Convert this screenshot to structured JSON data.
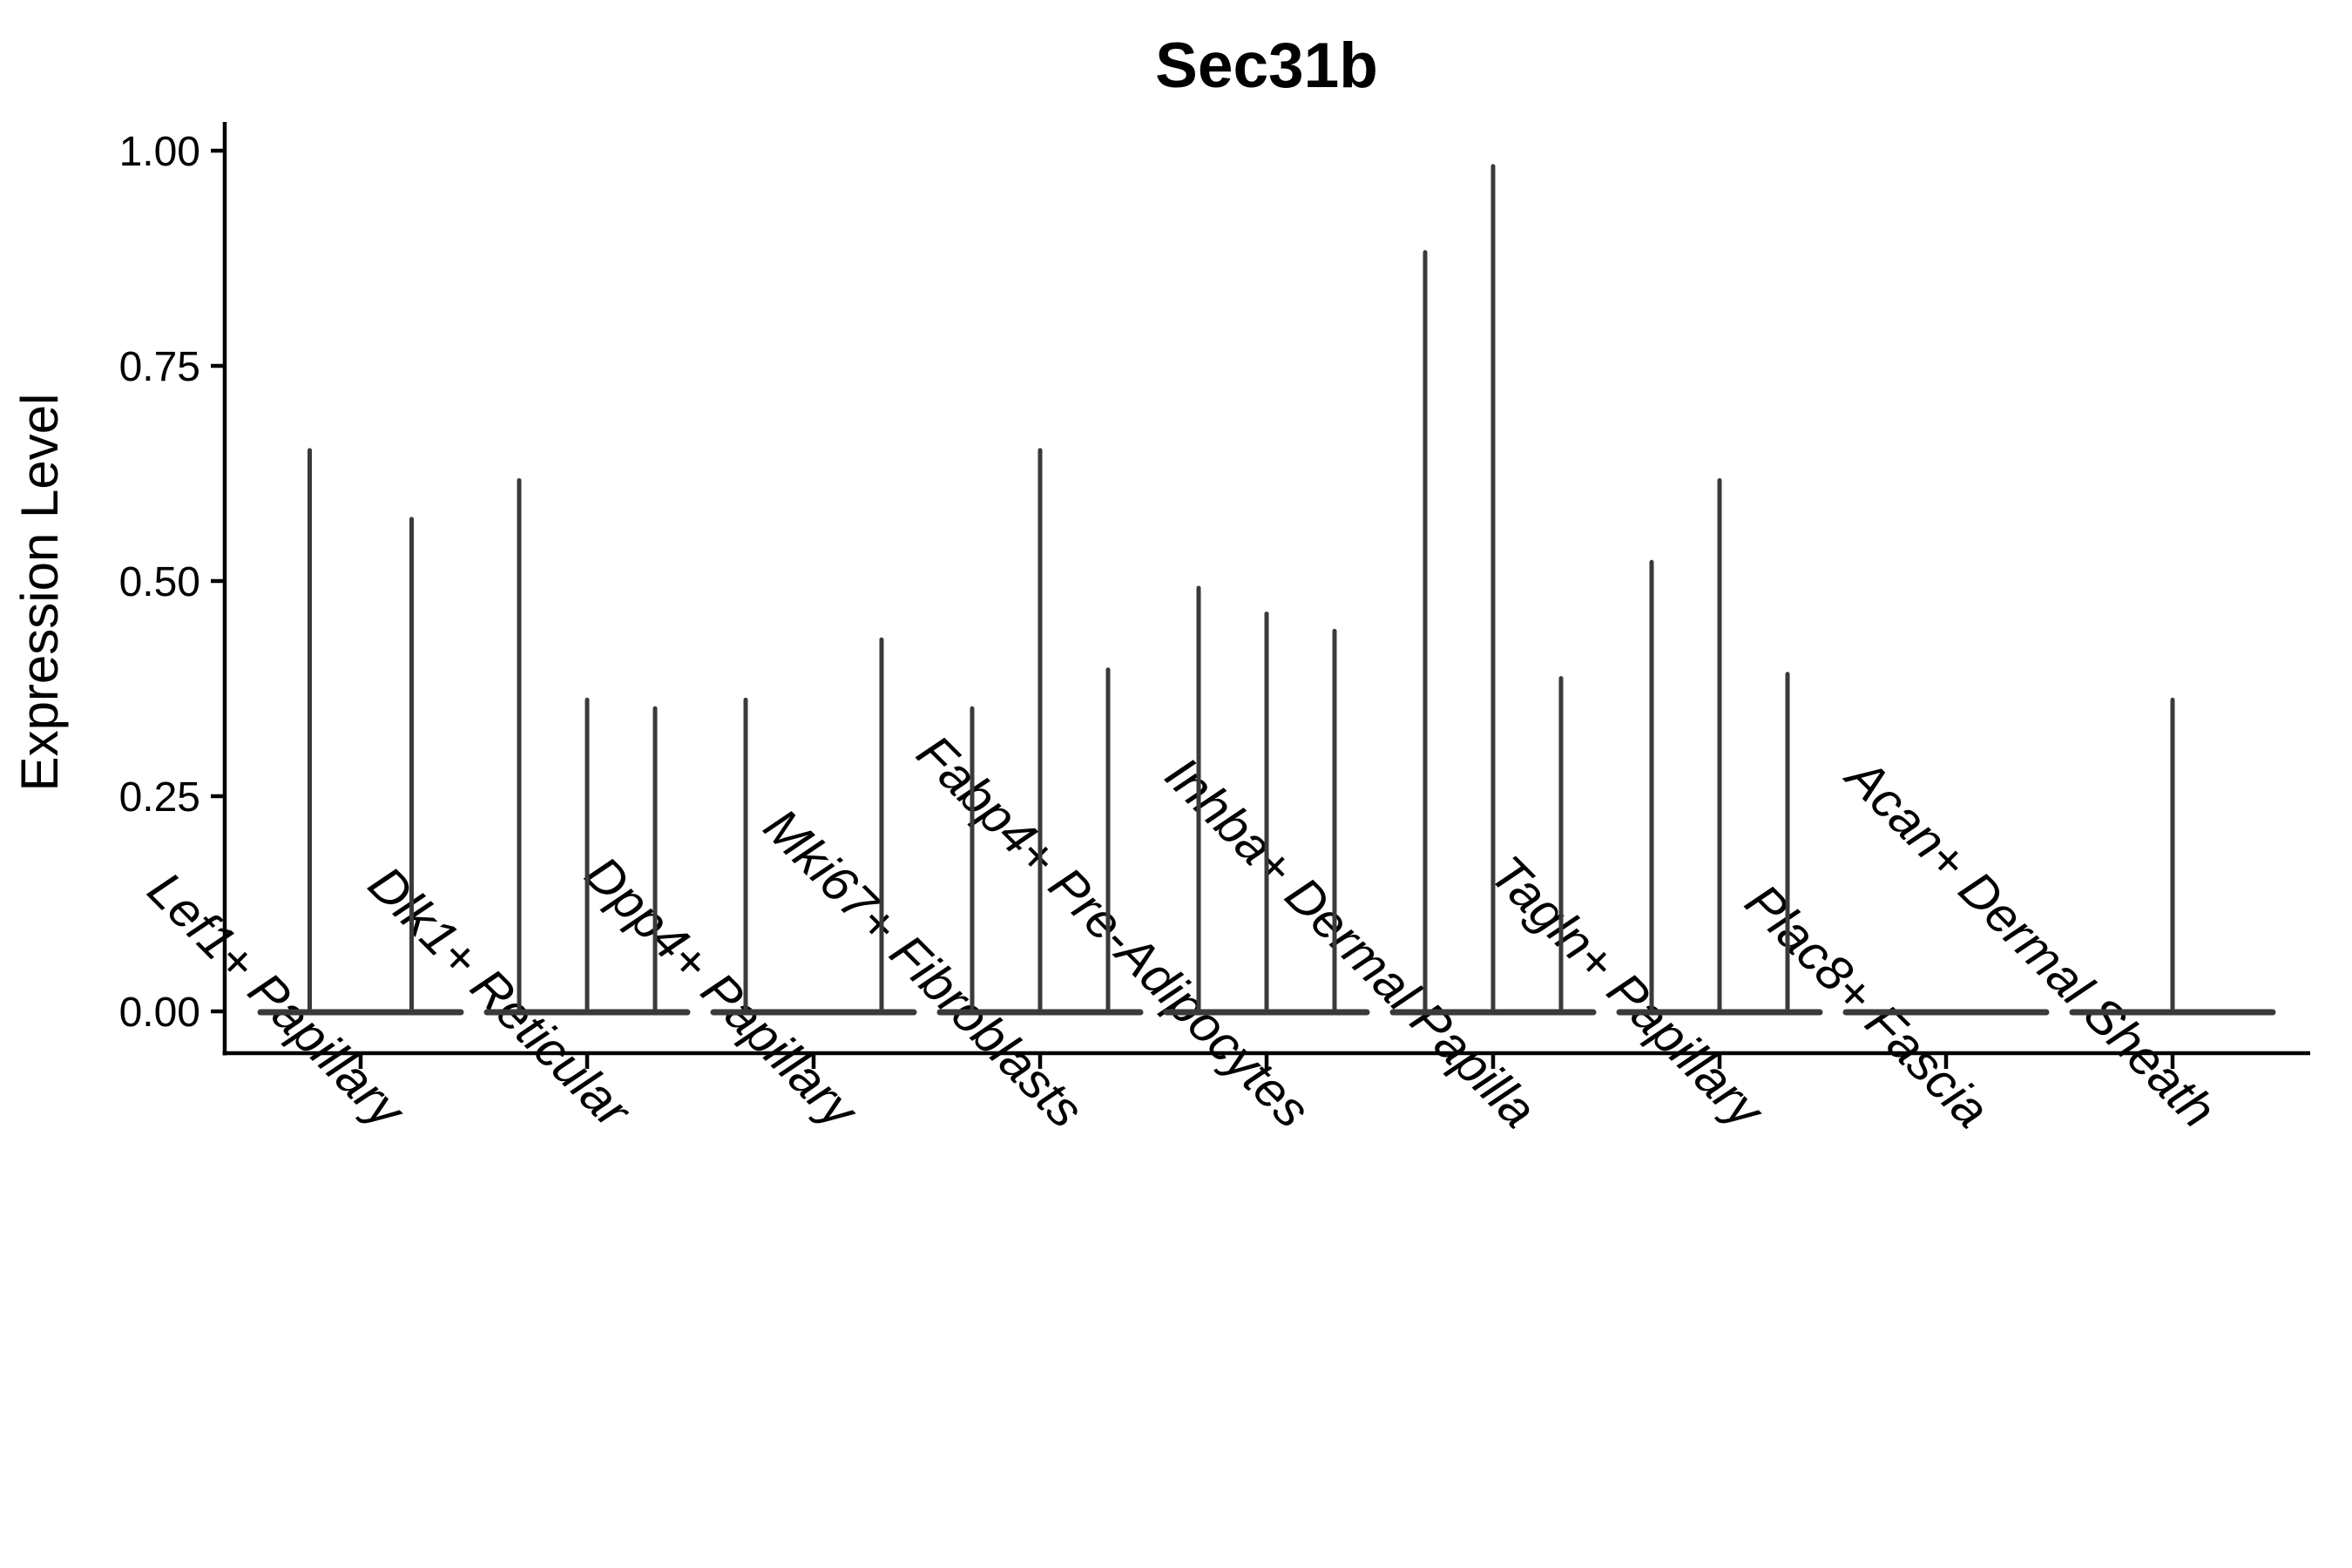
{
  "chart_data": {
    "type": "violin",
    "title": "Sec31b",
    "ylabel": "Expression Level",
    "xlabel": "",
    "ylim": [
      0,
      1.0
    ],
    "yticks": [
      0,
      0.25,
      0.5,
      0.75,
      1.0
    ],
    "ytick_labels": [
      "0.00",
      "0.25",
      "0.50",
      "0.75",
      "1.00"
    ],
    "x_tick_angle": 45,
    "grid": false,
    "legend": "none",
    "categories": [
      "Lef1+ Papillary",
      "Dlk1+ Reticular",
      "Dpp4+ Papillary",
      "Mki67+ Fibroblasts",
      "Fabp4+ Pre-Adipocytes",
      "Inhba+ Dermal Papilla",
      "Tagln+ Papillary",
      "Plac8+ Fascia",
      "Acan+ Dermal Sheath"
    ],
    "series": [
      {
        "category": "Lef1+ Papillary",
        "spikes": [
          {
            "pos": -0.225,
            "value": 0.655
          },
          {
            "pos": 0.225,
            "value": 0.575
          }
        ]
      },
      {
        "category": "Dlk1+ Reticular",
        "spikes": [
          {
            "pos": -0.3,
            "value": 0.62
          },
          {
            "pos": 0,
            "value": 0.365
          },
          {
            "pos": 0.3,
            "value": 0.355
          }
        ]
      },
      {
        "category": "Dpp4+ Papillary",
        "spikes": [
          {
            "pos": -0.3,
            "value": 0.365
          },
          {
            "pos": 0.3,
            "value": 0.435
          }
        ]
      },
      {
        "category": "Mki67+ Fibroblasts",
        "spikes": [
          {
            "pos": -0.3,
            "value": 0.355
          },
          {
            "pos": 0,
            "value": 0.655
          },
          {
            "pos": 0.3,
            "value": 0.4
          }
        ]
      },
      {
        "category": "Fabp4+ Pre-Adipocytes",
        "spikes": [
          {
            "pos": -0.3,
            "value": 0.495
          },
          {
            "pos": 0,
            "value": 0.465
          },
          {
            "pos": 0.3,
            "value": 0.445
          }
        ]
      },
      {
        "category": "Inhba+ Dermal Papilla",
        "spikes": [
          {
            "pos": -0.3,
            "value": 0.885
          },
          {
            "pos": 0,
            "value": 0.985
          },
          {
            "pos": 0.3,
            "value": 0.39
          }
        ]
      },
      {
        "category": "Tagln+ Papillary",
        "spikes": [
          {
            "pos": -0.3,
            "value": 0.525
          },
          {
            "pos": 0,
            "value": 0.62
          },
          {
            "pos": 0.3,
            "value": 0.395
          }
        ]
      },
      {
        "category": "Plac8+ Fascia",
        "spikes": []
      },
      {
        "category": "Acan+ Dermal Sheath",
        "spikes": [
          {
            "pos": 0,
            "value": 0.365
          }
        ]
      }
    ],
    "colors": {
      "violin": "#3a3a3a",
      "axis": "#000000",
      "text": "#000000",
      "background": "#ffffff"
    }
  }
}
